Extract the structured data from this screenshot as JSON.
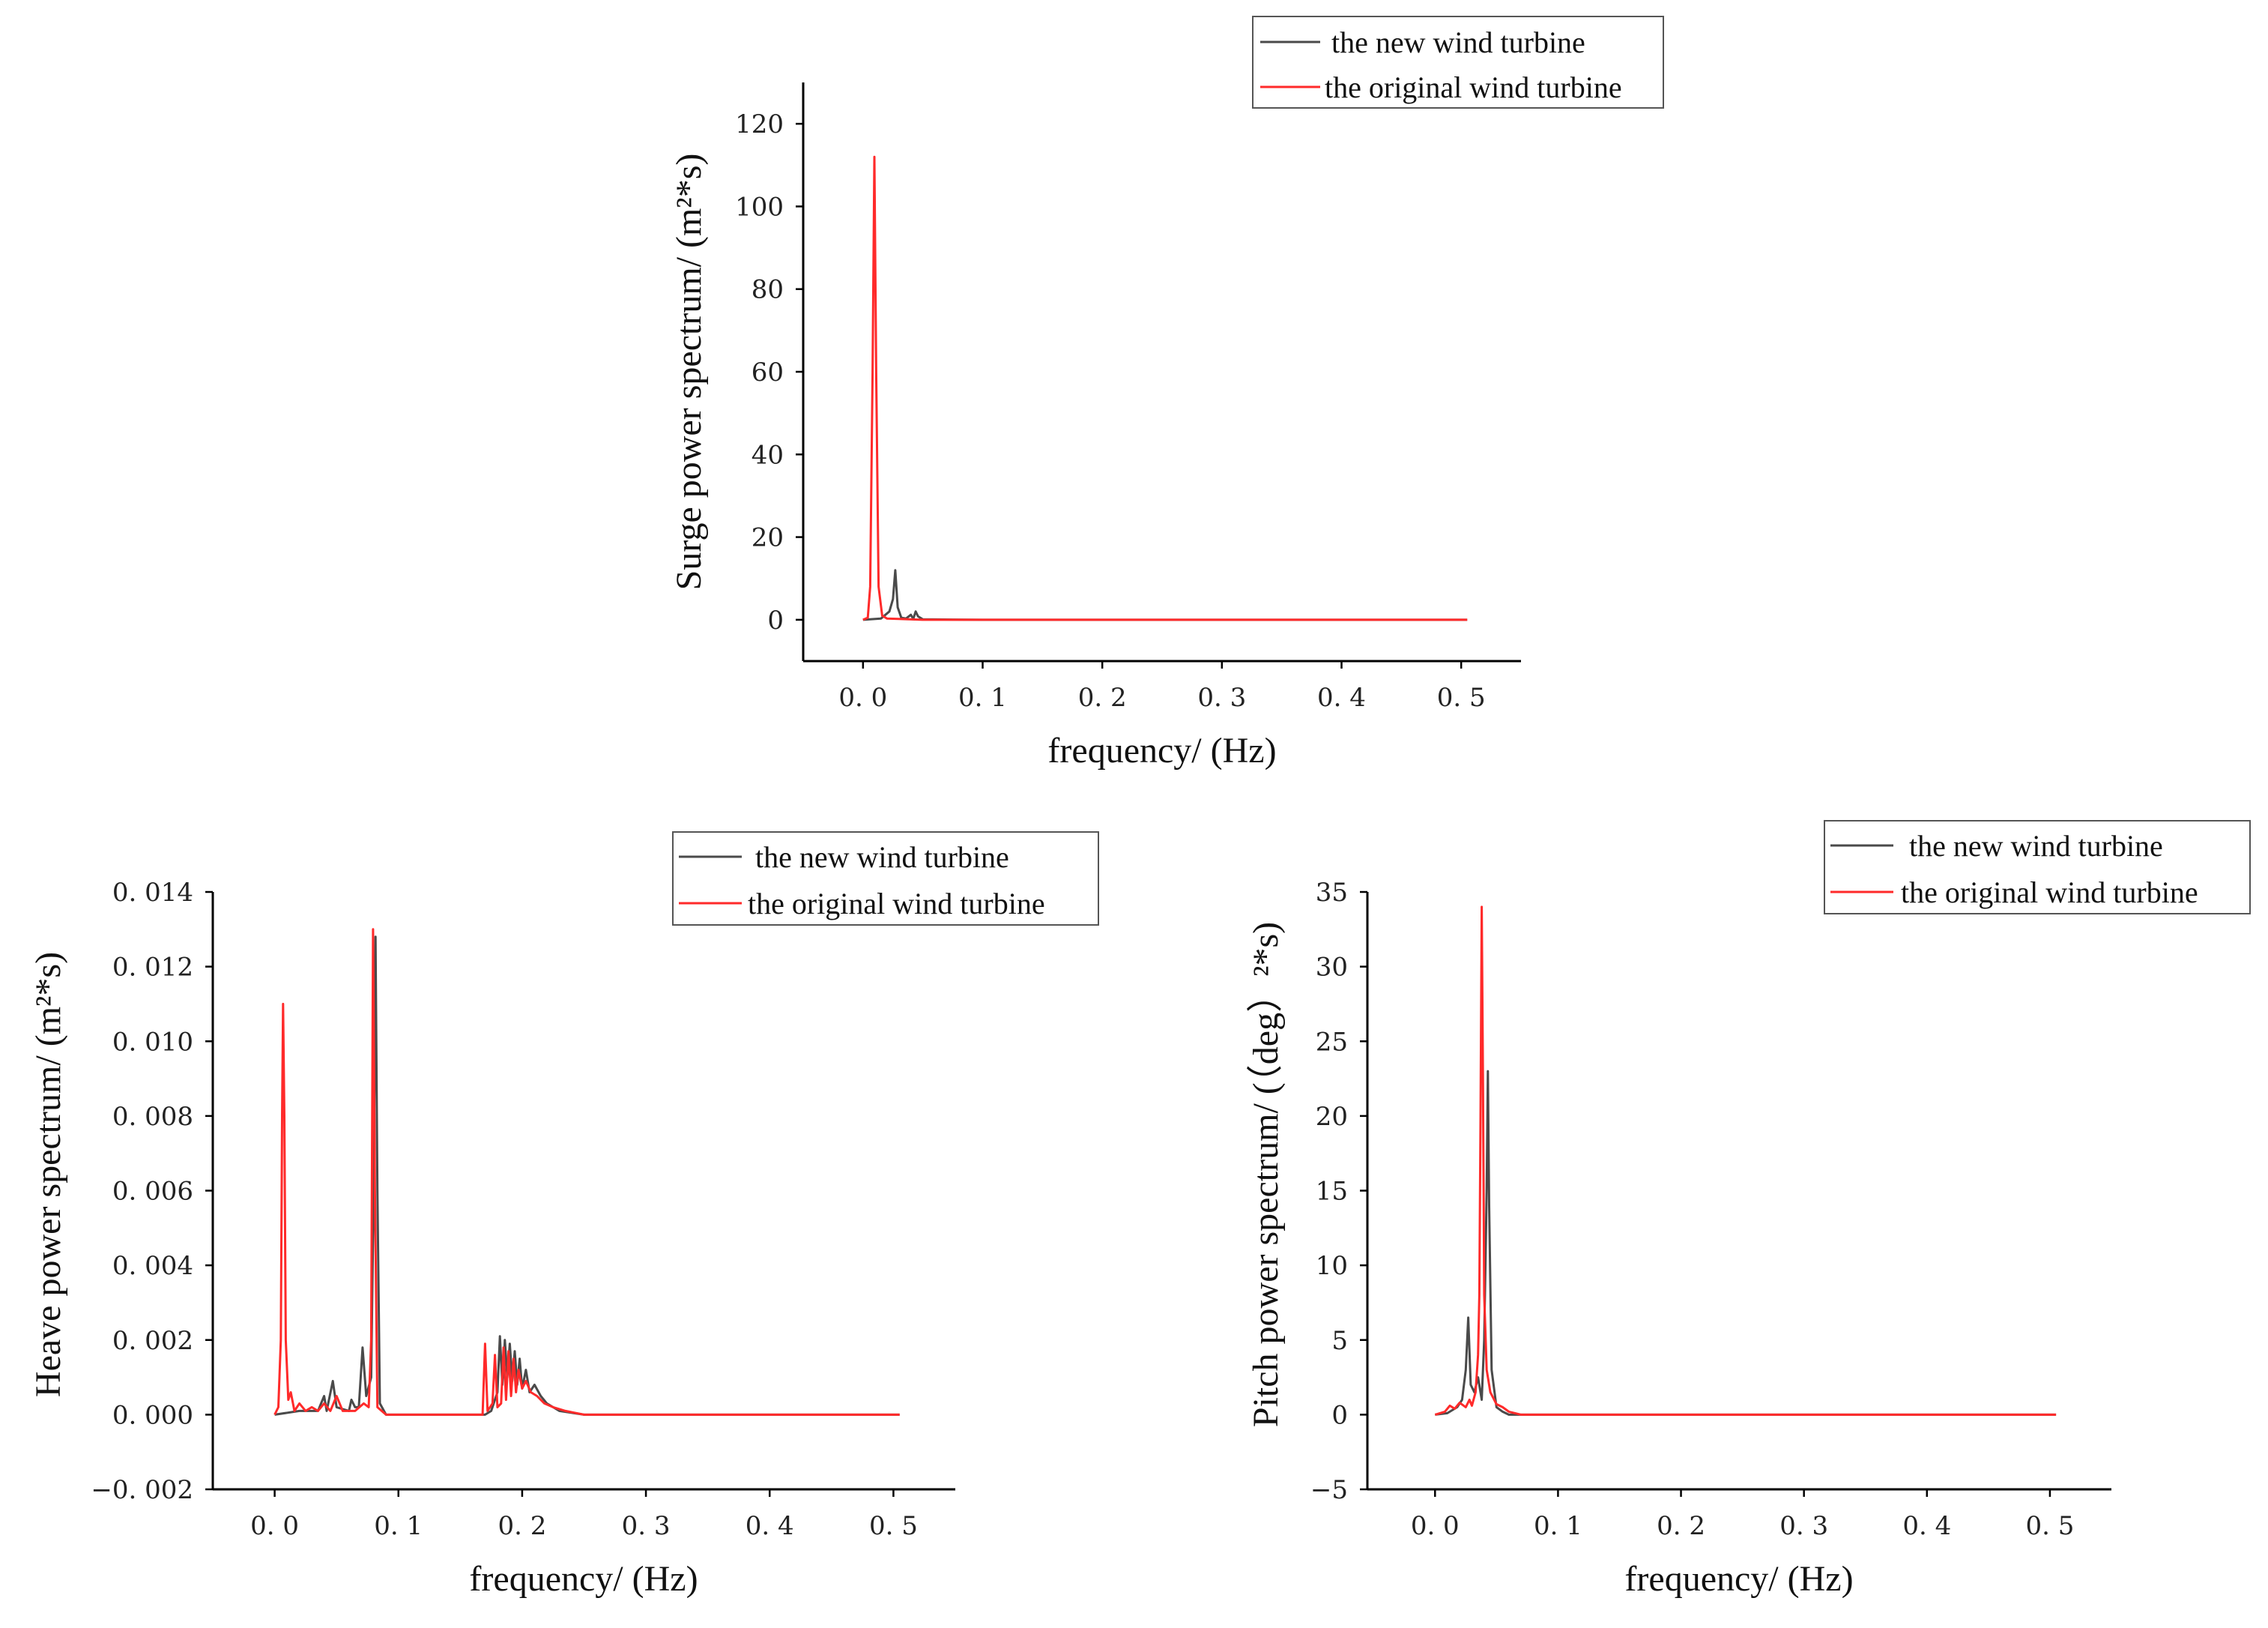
{
  "chart_data": [
    {
      "id": "surge",
      "type": "line",
      "title": "",
      "xlabel": "frequency/ (Hz)",
      "ylabel": "Surge power spectrum/ (m²*s)",
      "xlim": [
        -0.05,
        0.55
      ],
      "ylim": [
        -10,
        130
      ],
      "xticks": [
        0.0,
        0.1,
        0.2,
        0.3,
        0.4,
        0.5
      ],
      "xtick_labels": [
        "0. 0",
        "0. 1",
        "0. 2",
        "0. 3",
        "0. 4",
        "0. 5"
      ],
      "yticks": [
        0,
        20,
        40,
        60,
        80,
        100,
        120
      ],
      "ytick_labels": [
        "0",
        "20",
        "40",
        "60",
        "80",
        "100",
        "120"
      ],
      "legend_position": "top-right",
      "series": [
        {
          "name": "the new wind turbine",
          "color": "#4a4a4a",
          "points": [
            [
              0.0,
              0
            ],
            [
              0.015,
              0.3
            ],
            [
              0.022,
              2
            ],
            [
              0.025,
              5
            ],
            [
              0.027,
              12
            ],
            [
              0.029,
              3
            ],
            [
              0.032,
              0.5
            ],
            [
              0.036,
              0.3
            ],
            [
              0.04,
              1.2
            ],
            [
              0.042,
              0.2
            ],
            [
              0.044,
              2
            ],
            [
              0.046,
              0.8
            ],
            [
              0.05,
              0.1
            ],
            [
              0.1,
              0
            ],
            [
              0.3,
              0
            ],
            [
              0.505,
              0
            ]
          ]
        },
        {
          "name": "the original wind turbine",
          "color": "#ff2a2a",
          "points": [
            [
              0.0,
              0
            ],
            [
              0.004,
              0.5
            ],
            [
              0.006,
              8
            ],
            [
              0.008,
              60
            ],
            [
              0.0095,
              112
            ],
            [
              0.011,
              60
            ],
            [
              0.013,
              8
            ],
            [
              0.016,
              1
            ],
            [
              0.02,
              0.3
            ],
            [
              0.03,
              0.2
            ],
            [
              0.05,
              0
            ],
            [
              0.1,
              0
            ],
            [
              0.3,
              0
            ],
            [
              0.505,
              0
            ]
          ]
        }
      ]
    },
    {
      "id": "heave",
      "type": "line",
      "title": "",
      "xlabel": "frequency/ (Hz)",
      "ylabel": "Heave power spectrum/ (m²*s)",
      "xlim": [
        -0.05,
        0.55
      ],
      "ylim": [
        -0.002,
        0.014
      ],
      "xticks": [
        0.0,
        0.1,
        0.2,
        0.3,
        0.4,
        0.5
      ],
      "xtick_labels": [
        "0. 0",
        "0. 1",
        "0. 2",
        "0. 3",
        "0. 4",
        "0. 5"
      ],
      "yticks": [
        -0.002,
        0.0,
        0.002,
        0.004,
        0.006,
        0.008,
        0.01,
        0.012,
        0.014
      ],
      "ytick_labels": [
        "−0. 002",
        "0. 000",
        "0. 002",
        "0. 004",
        "0. 006",
        "0. 008",
        "0. 010",
        "0. 012",
        "0. 014"
      ],
      "legend_position": "top-right",
      "series": [
        {
          "name": "the new wind turbine",
          "color": "#4a4a4a",
          "points": [
            [
              0.0,
              0
            ],
            [
              0.02,
              0.0001
            ],
            [
              0.035,
              0.0001
            ],
            [
              0.04,
              0.0005
            ],
            [
              0.042,
              0.0001
            ],
            [
              0.047,
              0.0009
            ],
            [
              0.05,
              0.0002
            ],
            [
              0.06,
              0.0001
            ],
            [
              0.062,
              0.0004
            ],
            [
              0.065,
              0.0002
            ],
            [
              0.068,
              0.0002
            ],
            [
              0.071,
              0.0018
            ],
            [
              0.074,
              0.0005
            ],
            [
              0.078,
              0.001
            ],
            [
              0.08,
              0.006
            ],
            [
              0.0815,
              0.0128
            ],
            [
              0.083,
              0.006
            ],
            [
              0.085,
              0.0003
            ],
            [
              0.09,
              0
            ],
            [
              0.17,
              0
            ],
            [
              0.175,
              0.0001
            ],
            [
              0.18,
              0.0006
            ],
            [
              0.182,
              0.0021
            ],
            [
              0.184,
              0.0008
            ],
            [
              0.186,
              0.002
            ],
            [
              0.188,
              0.001
            ],
            [
              0.19,
              0.0019
            ],
            [
              0.192,
              0.0009
            ],
            [
              0.194,
              0.0017
            ],
            [
              0.196,
              0.0008
            ],
            [
              0.198,
              0.0015
            ],
            [
              0.2,
              0.0007
            ],
            [
              0.203,
              0.0012
            ],
            [
              0.206,
              0.0006
            ],
            [
              0.21,
              0.0008
            ],
            [
              0.215,
              0.0005
            ],
            [
              0.22,
              0.0003
            ],
            [
              0.23,
              0.0001
            ],
            [
              0.25,
              0
            ],
            [
              0.505,
              0
            ]
          ]
        },
        {
          "name": "the original wind turbine",
          "color": "#ff2a2a",
          "points": [
            [
              0.0,
              0
            ],
            [
              0.003,
              0.0002
            ],
            [
              0.005,
              0.002
            ],
            [
              0.006,
              0.008
            ],
            [
              0.0068,
              0.011
            ],
            [
              0.0078,
              0.008
            ],
            [
              0.009,
              0.002
            ],
            [
              0.011,
              0.0004
            ],
            [
              0.013,
              0.0006
            ],
            [
              0.016,
              0.0001
            ],
            [
              0.02,
              0.0003
            ],
            [
              0.025,
              0.0001
            ],
            [
              0.03,
              0.0002
            ],
            [
              0.035,
              0.0001
            ],
            [
              0.04,
              0.0003
            ],
            [
              0.045,
              0.0001
            ],
            [
              0.05,
              0.0005
            ],
            [
              0.055,
              0.0001
            ],
            [
              0.065,
              0.0001
            ],
            [
              0.072,
              0.0003
            ],
            [
              0.076,
              0.0002
            ],
            [
              0.078,
              0.002
            ],
            [
              0.0795,
              0.013
            ],
            [
              0.081,
              0.006
            ],
            [
              0.083,
              0.0002
            ],
            [
              0.09,
              0
            ],
            [
              0.168,
              0
            ],
            [
              0.17,
              0.0019
            ],
            [
              0.172,
              0.0001
            ],
            [
              0.176,
              0.0003
            ],
            [
              0.178,
              0.0016
            ],
            [
              0.18,
              0.0002
            ],
            [
              0.183,
              0.0003
            ],
            [
              0.185,
              0.0018
            ],
            [
              0.187,
              0.0004
            ],
            [
              0.189,
              0.0017
            ],
            [
              0.191,
              0.0005
            ],
            [
              0.193,
              0.0015
            ],
            [
              0.195,
              0.0006
            ],
            [
              0.197,
              0.0012
            ],
            [
              0.2,
              0.0007
            ],
            [
              0.203,
              0.0009
            ],
            [
              0.207,
              0.0006
            ],
            [
              0.212,
              0.0005
            ],
            [
              0.218,
              0.0003
            ],
            [
              0.225,
              0.0002
            ],
            [
              0.235,
              0.0001
            ],
            [
              0.25,
              0
            ],
            [
              0.505,
              0
            ]
          ]
        }
      ]
    },
    {
      "id": "pitch",
      "type": "line",
      "title": "",
      "xlabel": "frequency/ (Hz)",
      "ylabel": "Pitch power spectrum/ (（deg）²*s)",
      "xlim": [
        -0.055,
        0.55
      ],
      "ylim": [
        -5,
        35
      ],
      "xticks": [
        0.0,
        0.1,
        0.2,
        0.3,
        0.4,
        0.5
      ],
      "xtick_labels": [
        "0. 0",
        "0. 1",
        "0. 2",
        "0. 3",
        "0. 4",
        "0. 5"
      ],
      "yticks": [
        -5,
        0,
        5,
        10,
        15,
        20,
        25,
        30,
        35
      ],
      "ytick_labels": [
        "−5",
        "0",
        "5",
        "10",
        "15",
        "20",
        "25",
        "30",
        "35"
      ],
      "legend_position": "top-right",
      "series": [
        {
          "name": "the new wind turbine",
          "color": "#4a4a4a",
          "points": [
            [
              0.0,
              0
            ],
            [
              0.01,
              0.1
            ],
            [
              0.018,
              0.5
            ],
            [
              0.022,
              1
            ],
            [
              0.025,
              3
            ],
            [
              0.027,
              6.5
            ],
            [
              0.029,
              2
            ],
            [
              0.032,
              1.5
            ],
            [
              0.035,
              2.5
            ],
            [
              0.038,
              1
            ],
            [
              0.04,
              5
            ],
            [
              0.042,
              15
            ],
            [
              0.043,
              23
            ],
            [
              0.044,
              14
            ],
            [
              0.046,
              3
            ],
            [
              0.05,
              0.5
            ],
            [
              0.055,
              0.2
            ],
            [
              0.06,
              0
            ],
            [
              0.505,
              0
            ]
          ]
        },
        {
          "name": "the original wind turbine",
          "color": "#ff2a2a",
          "points": [
            [
              0.0,
              0
            ],
            [
              0.008,
              0.2
            ],
            [
              0.012,
              0.6
            ],
            [
              0.016,
              0.4
            ],
            [
              0.02,
              0.8
            ],
            [
              0.025,
              0.5
            ],
            [
              0.028,
              1
            ],
            [
              0.03,
              0.6
            ],
            [
              0.033,
              1.5
            ],
            [
              0.035,
              4
            ],
            [
              0.036,
              8
            ],
            [
              0.037,
              20
            ],
            [
              0.038,
              34
            ],
            [
              0.039,
              22
            ],
            [
              0.04,
              8
            ],
            [
              0.042,
              3
            ],
            [
              0.045,
              1.5
            ],
            [
              0.05,
              0.7
            ],
            [
              0.055,
              0.5
            ],
            [
              0.06,
              0.2
            ],
            [
              0.07,
              0
            ],
            [
              0.505,
              0
            ]
          ]
        }
      ]
    }
  ]
}
